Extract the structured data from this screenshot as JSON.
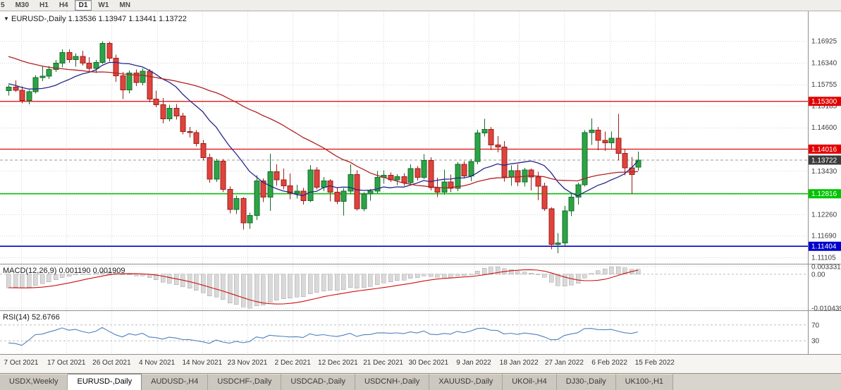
{
  "toolbar": {
    "timeframes": [
      {
        "label": "5",
        "active": false
      },
      {
        "label": "M30",
        "active": false
      },
      {
        "label": "H1",
        "active": false
      },
      {
        "label": "H4",
        "active": false
      },
      {
        "label": "D1",
        "active": true
      },
      {
        "label": "W1",
        "active": false
      },
      {
        "label": "MN",
        "active": false
      }
    ]
  },
  "chart": {
    "marker": "▼",
    "title": "EURUSD-,Daily",
    "ohlc_text": "1.13536 1.13947 1.13441 1.13722"
  },
  "chart_data": {
    "type": "candlestick",
    "symbol": "EURUSD-",
    "timeframe": "Daily",
    "current_ohlc": {
      "open": 1.13536,
      "high": 1.13947,
      "low": 1.13441,
      "close": 1.13722
    },
    "x_labels": [
      "7 Oct 2021",
      "17 Oct 2021",
      "26 Oct 2021",
      "4 Nov 2021",
      "14 Nov 2021",
      "23 Nov 2021",
      "2 Dec 2021",
      "12 Dec 2021",
      "21 Dec 2021",
      "30 Dec 2021",
      "9 Jan 2022",
      "18 Jan 2022",
      "27 Jan 2022",
      "6 Feb 2022",
      "15 Feb 2022"
    ],
    "y_axis_labels": [
      "1.16925",
      "1.16340",
      "1.15755",
      "1.15185",
      "1.14600",
      "1.13430",
      "1.12260",
      "1.11690",
      "1.11105"
    ],
    "gridline_values": [
      1.16925,
      1.1634,
      1.15755,
      1.15185,
      1.146,
      1.14015,
      1.1343,
      1.12845,
      1.1226,
      1.1169,
      1.11105
    ],
    "hlines": [
      {
        "value": 1.153,
        "label": "1.15300",
        "color": "#e30000",
        "width": 1.2
      },
      {
        "value": 1.14016,
        "label": "1.14016",
        "color": "#e30000",
        "width": 1.2
      },
      {
        "value": 1.12816,
        "label": "1.12816",
        "color": "#00c400",
        "width": 1.6
      },
      {
        "value": 1.11404,
        "label": "1.11404",
        "color": "#0000cc",
        "width": 1.6
      }
    ],
    "current_price": {
      "value": 1.13722,
      "label": "1.13722",
      "color": "#3c3c3c"
    },
    "moving_averages": [
      {
        "name": "fast-ma",
        "period": 12,
        "color": "#26268c"
      },
      {
        "name": "slow-ma",
        "period": 34,
        "color": "#b22222"
      }
    ],
    "prior_closes_for_indicators": [
      1.1755,
      1.1748,
      1.1752,
      1.174,
      1.1732,
      1.1738,
      1.1726,
      1.1718,
      1.1722,
      1.1708,
      1.17,
      1.1692,
      1.1698,
      1.1685,
      1.1672,
      1.1678,
      1.1665,
      1.1652,
      1.1646,
      1.1638,
      1.163,
      1.1635,
      1.1622,
      1.161,
      1.16,
      1.1605,
      1.1592,
      1.1585,
      1.1578,
      1.157,
      1.1562,
      1.1555,
      1.1548,
      1.1553
    ],
    "candles": [
      [
        1.1559,
        1.1574,
        1.1546,
        1.1568
      ],
      [
        1.1568,
        1.1586,
        1.1555,
        1.156
      ],
      [
        1.156,
        1.157,
        1.1525,
        1.1532
      ],
      [
        1.1532,
        1.1561,
        1.1522,
        1.1556
      ],
      [
        1.1556,
        1.1601,
        1.1551,
        1.1594
      ],
      [
        1.1594,
        1.1624,
        1.1584,
        1.1598
      ],
      [
        1.1598,
        1.1625,
        1.159,
        1.1616
      ],
      [
        1.1616,
        1.1641,
        1.1609,
        1.1633
      ],
      [
        1.1633,
        1.167,
        1.1621,
        1.1661
      ],
      [
        1.1661,
        1.167,
        1.1634,
        1.1642
      ],
      [
        1.1642,
        1.1659,
        1.1623,
        1.1651
      ],
      [
        1.1651,
        1.1666,
        1.1626,
        1.1633
      ],
      [
        1.1633,
        1.1649,
        1.1611,
        1.1619
      ],
      [
        1.1619,
        1.1641,
        1.1606,
        1.1635
      ],
      [
        1.1635,
        1.1692,
        1.1631,
        1.1686
      ],
      [
        1.1686,
        1.1691,
        1.1637,
        1.1646
      ],
      [
        1.1646,
        1.1656,
        1.1583,
        1.1599
      ],
      [
        1.1599,
        1.1609,
        1.1536,
        1.1561
      ],
      [
        1.1561,
        1.1613,
        1.1551,
        1.1606
      ],
      [
        1.1606,
        1.1616,
        1.1571,
        1.1581
      ],
      [
        1.1581,
        1.1619,
        1.1573,
        1.1611
      ],
      [
        1.1611,
        1.1617,
        1.1528,
        1.1536
      ],
      [
        1.1536,
        1.1559,
        1.1514,
        1.1521
      ],
      [
        1.1521,
        1.1539,
        1.1471,
        1.1483
      ],
      [
        1.1483,
        1.1521,
        1.1476,
        1.1511
      ],
      [
        1.1511,
        1.1523,
        1.1481,
        1.1491
      ],
      [
        1.1491,
        1.1499,
        1.1441,
        1.1449
      ],
      [
        1.1449,
        1.1461,
        1.1433,
        1.1446
      ],
      [
        1.1446,
        1.1453,
        1.1409,
        1.1417
      ],
      [
        1.1417,
        1.1426,
        1.1371,
        1.1379
      ],
      [
        1.1379,
        1.1389,
        1.1311,
        1.1321
      ],
      [
        1.1321,
        1.1376,
        1.1313,
        1.1369
      ],
      [
        1.1369,
        1.1375,
        1.1286,
        1.1293
      ],
      [
        1.1293,
        1.1301,
        1.1229,
        1.1239
      ],
      [
        1.1239,
        1.1276,
        1.1227,
        1.1269
      ],
      [
        1.1269,
        1.1273,
        1.1185,
        1.1203
      ],
      [
        1.1203,
        1.1231,
        1.1187,
        1.1223
      ],
      [
        1.1223,
        1.1331,
        1.1211,
        1.1316
      ],
      [
        1.1316,
        1.1323,
        1.1259,
        1.1273
      ],
      [
        1.1273,
        1.1389,
        1.1236,
        1.1341
      ],
      [
        1.1341,
        1.1361,
        1.1303,
        1.1319
      ],
      [
        1.1319,
        1.1349,
        1.1293,
        1.1303
      ],
      [
        1.1303,
        1.1336,
        1.1267,
        1.1283
      ],
      [
        1.1283,
        1.1306,
        1.1269,
        1.1289
      ],
      [
        1.1289,
        1.1297,
        1.1253,
        1.1263
      ],
      [
        1.1263,
        1.1359,
        1.1259,
        1.1346
      ],
      [
        1.1346,
        1.1353,
        1.1293,
        1.1299
      ],
      [
        1.1299,
        1.1327,
        1.1289,
        1.1316
      ],
      [
        1.1316,
        1.1321,
        1.1261,
        1.1286
      ],
      [
        1.1286,
        1.1299,
        1.1254,
        1.1261
      ],
      [
        1.1261,
        1.1296,
        1.1223,
        1.1289
      ],
      [
        1.1289,
        1.1361,
        1.1281,
        1.1333
      ],
      [
        1.1333,
        1.1345,
        1.1237,
        1.1241
      ],
      [
        1.1241,
        1.1286,
        1.1235,
        1.1281
      ],
      [
        1.1281,
        1.1294,
        1.1263,
        1.1289
      ],
      [
        1.1289,
        1.1343,
        1.1283,
        1.1326
      ],
      [
        1.1326,
        1.1345,
        1.1309,
        1.1331
      ],
      [
        1.1331,
        1.1339,
        1.1313,
        1.1319
      ],
      [
        1.1319,
        1.1334,
        1.1305,
        1.1328
      ],
      [
        1.1328,
        1.1337,
        1.1303,
        1.1311
      ],
      [
        1.1311,
        1.1361,
        1.1305,
        1.1349
      ],
      [
        1.1349,
        1.1356,
        1.1317,
        1.1326
      ],
      [
        1.1326,
        1.1388,
        1.1321,
        1.1371
      ],
      [
        1.1371,
        1.138,
        1.1291,
        1.1298
      ],
      [
        1.1298,
        1.1325,
        1.1273,
        1.1286
      ],
      [
        1.1286,
        1.1347,
        1.1279,
        1.1313
      ],
      [
        1.1313,
        1.1333,
        1.1286,
        1.1296
      ],
      [
        1.1296,
        1.1366,
        1.1289,
        1.1361
      ],
      [
        1.1361,
        1.1369,
        1.1323,
        1.1329
      ],
      [
        1.1329,
        1.1375,
        1.1315,
        1.1368
      ],
      [
        1.1368,
        1.1454,
        1.1361,
        1.1445
      ],
      [
        1.1445,
        1.1483,
        1.1436,
        1.1455
      ],
      [
        1.1455,
        1.1461,
        1.1399,
        1.1413
      ],
      [
        1.1413,
        1.1437,
        1.1393,
        1.1407
      ],
      [
        1.1407,
        1.1423,
        1.1314,
        1.1327
      ],
      [
        1.1327,
        1.1358,
        1.1303,
        1.1344
      ],
      [
        1.1344,
        1.1361,
        1.1302,
        1.1313
      ],
      [
        1.1313,
        1.1351,
        1.1301,
        1.1346
      ],
      [
        1.1346,
        1.1349,
        1.1291,
        1.1327
      ],
      [
        1.1327,
        1.1341,
        1.1264,
        1.1302
      ],
      [
        1.1302,
        1.1311,
        1.1236,
        1.1241
      ],
      [
        1.1241,
        1.1245,
        1.1132,
        1.1146
      ],
      [
        1.1146,
        1.1176,
        1.1122,
        1.1149
      ],
      [
        1.1149,
        1.1249,
        1.1141,
        1.1236
      ],
      [
        1.1236,
        1.128,
        1.1221,
        1.1273
      ],
      [
        1.1273,
        1.1311,
        1.1253,
        1.1306
      ],
      [
        1.1306,
        1.1453,
        1.1301,
        1.1446
      ],
      [
        1.1446,
        1.1484,
        1.1413,
        1.1453
      ],
      [
        1.1453,
        1.1461,
        1.1399,
        1.1425
      ],
      [
        1.1425,
        1.1449,
        1.1397,
        1.1419
      ],
      [
        1.1419,
        1.1449,
        1.1403,
        1.1431
      ],
      [
        1.1431,
        1.1496,
        1.1371,
        1.139
      ],
      [
        1.139,
        1.1401,
        1.1331,
        1.1351
      ],
      [
        1.1351,
        1.1381,
        1.1281,
        1.1333
      ],
      [
        1.13536,
        1.13947,
        1.13441,
        1.13722
      ]
    ],
    "indicators": {
      "macd": {
        "label": "MACD(12,26,9)",
        "values_text": "0.001190 0.001909",
        "fast": 12,
        "slow": 26,
        "signal": 9,
        "axis_labels": [
          "0.003331",
          "0.00",
          "-0.010439"
        ]
      },
      "rsi": {
        "label": "RSI(14)",
        "value_text": "52.6766",
        "period": 14,
        "levels": [
          70,
          30
        ],
        "axis_labels": [
          "70",
          "30"
        ]
      }
    },
    "colors": {
      "bull": "#2ca444",
      "bear": "#e0433c",
      "bull_edge": "#156b2b",
      "bear_edge": "#97201b",
      "ma_fast": "#26268c",
      "ma_slow": "#b22222",
      "macd_hist": "#d9d9d9",
      "macd_hist_edge": "#a8a8a8",
      "macd_signal": "#cc1111",
      "rsi_line": "#4f81bd",
      "grid": "#d6d6d6",
      "axis_text": "#3c3c3c"
    }
  },
  "tabs": [
    {
      "label": "USDX,Weekly",
      "active": false
    },
    {
      "label": "EURUSD-,Daily",
      "active": true
    },
    {
      "label": "AUDUSD-,H4",
      "active": false
    },
    {
      "label": "USDCHF-,Daily",
      "active": false
    },
    {
      "label": "USDCAD-,Daily",
      "active": false
    },
    {
      "label": "USDCNH-,Daily",
      "active": false
    },
    {
      "label": "XAUUSD-,Daily",
      "active": false
    },
    {
      "label": "UKOil-,H4",
      "active": false
    },
    {
      "label": "DJ30-,Daily",
      "active": false
    },
    {
      "label": "UK100-,H1",
      "active": false
    }
  ]
}
